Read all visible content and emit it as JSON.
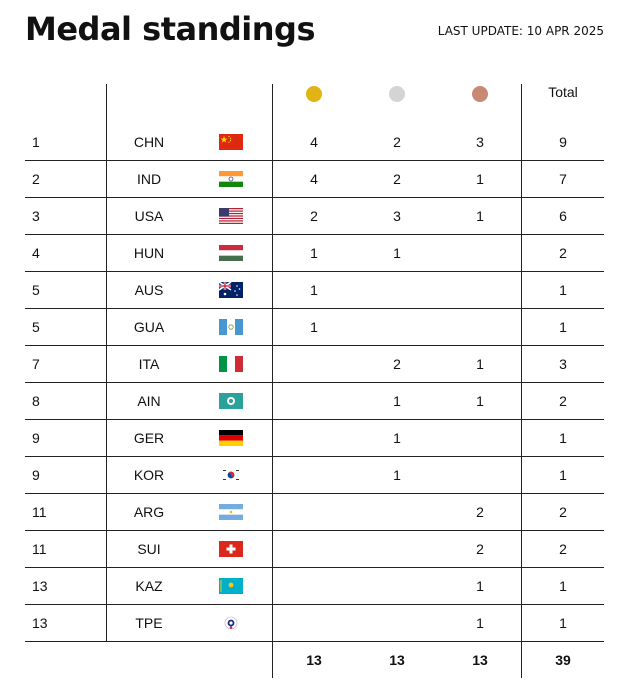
{
  "header": {
    "title": "Medal standings",
    "last_update": "LAST UPDATE: 10 APR 2025",
    "total_label": "Total"
  },
  "colors": {
    "gold": "#e2b413",
    "silver": "#d4d4d4",
    "bronze": "#c98a74"
  },
  "rows": [
    {
      "rank": "1",
      "code": "CHN",
      "flag": "china-flag",
      "gold": "4",
      "silver": "2",
      "bronze": "3",
      "total": "9"
    },
    {
      "rank": "2",
      "code": "IND",
      "flag": "india-flag",
      "gold": "4",
      "silver": "2",
      "bronze": "1",
      "total": "7"
    },
    {
      "rank": "3",
      "code": "USA",
      "flag": "usa-flag",
      "gold": "2",
      "silver": "3",
      "bronze": "1",
      "total": "6"
    },
    {
      "rank": "4",
      "code": "HUN",
      "flag": "hungary-flag",
      "gold": "1",
      "silver": "1",
      "bronze": "",
      "total": "2"
    },
    {
      "rank": "5",
      "code": "AUS",
      "flag": "australia-flag",
      "gold": "1",
      "silver": "",
      "bronze": "",
      "total": "1"
    },
    {
      "rank": "5",
      "code": "GUA",
      "flag": "guatemala-flag",
      "gold": "1",
      "silver": "",
      "bronze": "",
      "total": "1"
    },
    {
      "rank": "7",
      "code": "ITA",
      "flag": "italy-flag",
      "gold": "",
      "silver": "2",
      "bronze": "1",
      "total": "3"
    },
    {
      "rank": "8",
      "code": "AIN",
      "flag": "ain-flag",
      "gold": "",
      "silver": "1",
      "bronze": "1",
      "total": "2"
    },
    {
      "rank": "9",
      "code": "GER",
      "flag": "germany-flag",
      "gold": "",
      "silver": "1",
      "bronze": "",
      "total": "1"
    },
    {
      "rank": "9",
      "code": "KOR",
      "flag": "korea-flag",
      "gold": "",
      "silver": "1",
      "bronze": "",
      "total": "1"
    },
    {
      "rank": "11",
      "code": "ARG",
      "flag": "argentina-flag",
      "gold": "",
      "silver": "",
      "bronze": "2",
      "total": "2"
    },
    {
      "rank": "11",
      "code": "SUI",
      "flag": "switzerland-flag",
      "gold": "",
      "silver": "",
      "bronze": "2",
      "total": "2"
    },
    {
      "rank": "13",
      "code": "KAZ",
      "flag": "kazakhstan-flag",
      "gold": "",
      "silver": "",
      "bronze": "1",
      "total": "1"
    },
    {
      "rank": "13",
      "code": "TPE",
      "flag": "chinese-taipei-flag",
      "gold": "",
      "silver": "",
      "bronze": "1",
      "total": "1"
    }
  ],
  "totals": {
    "gold": "13",
    "silver": "13",
    "bronze": "13",
    "total": "39"
  }
}
